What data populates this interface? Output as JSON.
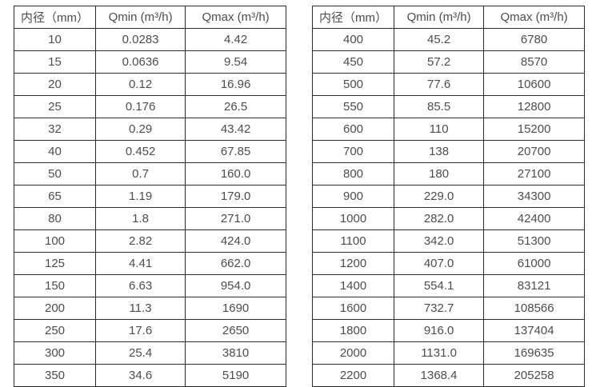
{
  "colors": {
    "border": "#2b2b2b",
    "text": "#4d4d4d",
    "background": "#ffffff"
  },
  "tables": [
    {
      "name": "flow-range-table-small-diameters",
      "headers": [
        "内径（mm）",
        "Qmin (m³/h)",
        "Qmax (m³/h)"
      ],
      "rows": [
        [
          "10",
          "0.0283",
          "4.42"
        ],
        [
          "15",
          "0.0636",
          "9.54"
        ],
        [
          "20",
          "0.12",
          "16.96"
        ],
        [
          "25",
          "0.176",
          "26.5"
        ],
        [
          "32",
          "0.29",
          "43.42"
        ],
        [
          "40",
          "0.452",
          "67.85"
        ],
        [
          "50",
          "0.7",
          "160.0"
        ],
        [
          "65",
          "1.19",
          "179.0"
        ],
        [
          "80",
          "1.8",
          "271.0"
        ],
        [
          "100",
          "2.82",
          "424.0"
        ],
        [
          "125",
          "4.41",
          "662.0"
        ],
        [
          "150",
          "6.63",
          "954.0"
        ],
        [
          "200",
          "11.3",
          "1690"
        ],
        [
          "250",
          "17.6",
          "2650"
        ],
        [
          "300",
          "25.4",
          "3810"
        ],
        [
          "350",
          "34.6",
          "5190"
        ]
      ]
    },
    {
      "name": "flow-range-table-large-diameters",
      "headers": [
        "内径（mm）",
        "Qmin (m³/h)",
        "Qmax (m³/h)"
      ],
      "rows": [
        [
          "400",
          "45.2",
          "6780"
        ],
        [
          "450",
          "57.2",
          "8570"
        ],
        [
          "500",
          "77.6",
          "10600"
        ],
        [
          "550",
          "85.5",
          "12800"
        ],
        [
          "600",
          "110",
          "15200"
        ],
        [
          "700",
          "138",
          "20700"
        ],
        [
          "800",
          "180",
          "27100"
        ],
        [
          "900",
          "229.0",
          "34300"
        ],
        [
          "1000",
          "282.0",
          "42400"
        ],
        [
          "1100",
          "342.0",
          "51300"
        ],
        [
          "1200",
          "407.0",
          "61000"
        ],
        [
          "1400",
          "554.1",
          "83121"
        ],
        [
          "1600",
          "732.7",
          "108566"
        ],
        [
          "1800",
          "916.0",
          "137404"
        ],
        [
          "2000",
          "1131.0",
          "169635"
        ],
        [
          "2200",
          "1368.4",
          "205258"
        ]
      ]
    }
  ]
}
